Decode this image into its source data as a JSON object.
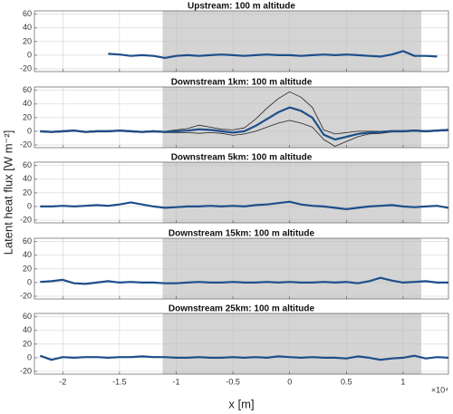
{
  "chart_data": [
    {
      "type": "line",
      "title": "Upstream: 100 m altitude",
      "x": [
        -2.2,
        -2.1,
        -2.0,
        -1.9,
        -1.8,
        -1.7,
        -1.6,
        -1.5,
        -1.4,
        -1.3,
        -1.2,
        -1.1,
        -1.0,
        -0.9,
        -0.8,
        -0.7,
        -0.6,
        -0.5,
        -0.4,
        -0.3,
        -0.2,
        -0.1,
        0,
        0.1,
        0.2,
        0.3,
        0.4,
        0.5,
        0.6,
        0.7,
        0.8,
        0.9,
        1.0,
        1.1,
        1.2,
        1.3,
        1.4
      ],
      "series": [
        {
          "color": "#1d4f8a",
          "values": [
            null,
            null,
            null,
            null,
            null,
            null,
            2,
            1,
            -1,
            0,
            -1,
            -4,
            -1,
            0,
            -1,
            0,
            1,
            0,
            -1,
            0,
            1,
            0,
            0,
            -1,
            0,
            1,
            0,
            1,
            0,
            -1,
            -2,
            1,
            6,
            -1,
            -1,
            -2,
            null
          ]
        }
      ],
      "xlim": [
        -2.25,
        1.4
      ],
      "ylim": [
        -24,
        65
      ],
      "xticks": [
        -2,
        -1.5,
        -1,
        -0.5,
        0,
        0.5,
        1
      ],
      "yticks": [
        -20,
        0,
        20,
        40,
        60
      ],
      "shade": [
        -1.12,
        1.16
      ],
      "grid": true
    },
    {
      "type": "line",
      "title": "Downstream 1km: 100 m altitude",
      "x": [
        -2.2,
        -2.1,
        -2.0,
        -1.9,
        -1.8,
        -1.7,
        -1.6,
        -1.5,
        -1.4,
        -1.3,
        -1.2,
        -1.1,
        -1.0,
        -0.9,
        -0.8,
        -0.7,
        -0.6,
        -0.5,
        -0.4,
        -0.3,
        -0.2,
        -0.1,
        0,
        0.1,
        0.2,
        0.3,
        0.4,
        0.5,
        0.6,
        0.7,
        0.8,
        0.9,
        1.0,
        1.1,
        1.2,
        1.3,
        1.4
      ],
      "series": [
        {
          "color": "#222222",
          "values": [
            1,
            0,
            1,
            2,
            0,
            1,
            1,
            2,
            1,
            0,
            1,
            0,
            2,
            4,
            9,
            6,
            3,
            2,
            5,
            18,
            34,
            48,
            58,
            50,
            35,
            2,
            -4,
            -2,
            0,
            0,
            0,
            1,
            1,
            2,
            1,
            2,
            3
          ]
        },
        {
          "color": "#222222",
          "values": [
            -1,
            -2,
            -1,
            0,
            -2,
            -1,
            -1,
            0,
            -1,
            -2,
            -1,
            -2,
            -2,
            -2,
            -3,
            -2,
            -3,
            -6,
            -4,
            0,
            6,
            12,
            16,
            12,
            6,
            -12,
            -22,
            -15,
            -8,
            -4,
            -3,
            -1,
            -1,
            0,
            -1,
            0,
            1
          ]
        },
        {
          "color": "#1d4f8a",
          "values": [
            0,
            -1,
            0,
            1,
            -1,
            0,
            0,
            1,
            0,
            -1,
            0,
            -1,
            0,
            1,
            3,
            2,
            0,
            -2,
            0,
            8,
            18,
            28,
            35,
            30,
            20,
            -5,
            -12,
            -8,
            -4,
            -2,
            -1,
            0,
            0,
            1,
            0,
            1,
            2
          ]
        }
      ],
      "xlim": [
        -2.25,
        1.4
      ],
      "ylim": [
        -24,
        65
      ],
      "xticks": [
        -2,
        -1.5,
        -1,
        -0.5,
        0,
        0.5,
        1
      ],
      "yticks": [
        -20,
        0,
        20,
        40,
        60
      ],
      "shade": [
        -1.12,
        1.16
      ],
      "grid": true
    },
    {
      "type": "line",
      "title": "Downstream 5km: 100 m altitude",
      "ylabel": "Latent heat flux [W m⁻²]",
      "x": [
        -2.2,
        -2.1,
        -2.0,
        -1.9,
        -1.8,
        -1.7,
        -1.6,
        -1.5,
        -1.4,
        -1.3,
        -1.2,
        -1.1,
        -1.0,
        -0.9,
        -0.8,
        -0.7,
        -0.6,
        -0.5,
        -0.4,
        -0.3,
        -0.2,
        -0.1,
        0,
        0.1,
        0.2,
        0.3,
        0.4,
        0.5,
        0.6,
        0.7,
        0.8,
        0.9,
        1.0,
        1.1,
        1.2,
        1.3,
        1.4
      ],
      "series": [
        {
          "color": "#1d4f8a",
          "values": [
            0,
            0,
            1,
            0,
            1,
            2,
            1,
            3,
            6,
            3,
            0,
            -2,
            -1,
            0,
            0,
            1,
            0,
            1,
            0,
            2,
            3,
            5,
            7,
            3,
            1,
            0,
            -2,
            -4,
            -2,
            0,
            1,
            2,
            0,
            -1,
            0,
            1,
            -2
          ]
        }
      ],
      "xlim": [
        -2.25,
        1.4
      ],
      "ylim": [
        -24,
        65
      ],
      "xticks": [
        -2,
        -1.5,
        -1,
        -0.5,
        0,
        0.5,
        1
      ],
      "yticks": [
        -20,
        0,
        20,
        40,
        60
      ],
      "shade": [
        -1.12,
        1.16
      ],
      "grid": true
    },
    {
      "type": "line",
      "title": "Downstream 15km: 100 m altitude",
      "x": [
        -2.2,
        -2.1,
        -2.0,
        -1.9,
        -1.8,
        -1.7,
        -1.6,
        -1.5,
        -1.4,
        -1.3,
        -1.2,
        -1.1,
        -1.0,
        -0.9,
        -0.8,
        -0.7,
        -0.6,
        -0.5,
        -0.4,
        -0.3,
        -0.2,
        -0.1,
        0,
        0.1,
        0.2,
        0.3,
        0.4,
        0.5,
        0.6,
        0.7,
        0.8,
        0.9,
        1.0,
        1.1,
        1.2,
        1.3,
        1.4
      ],
      "series": [
        {
          "color": "#1d4f8a",
          "values": [
            1,
            2,
            4,
            -1,
            -2,
            0,
            2,
            0,
            1,
            0,
            0,
            -1,
            -1,
            0,
            1,
            0,
            0,
            1,
            0,
            0,
            1,
            0,
            1,
            0,
            0,
            1,
            0,
            1,
            -1,
            2,
            7,
            3,
            0,
            1,
            2,
            0,
            0
          ]
        }
      ],
      "xlim": [
        -2.25,
        1.4
      ],
      "ylim": [
        -24,
        65
      ],
      "xticks": [
        -2,
        -1.5,
        -1,
        -0.5,
        0,
        0.5,
        1
      ],
      "yticks": [
        -20,
        0,
        20,
        40,
        60
      ],
      "shade": [
        -1.12,
        1.16
      ],
      "grid": true
    },
    {
      "type": "line",
      "title": "Downstream 25km: 100 m altitude",
      "xlabel": "x [m]",
      "x_exponent": "×10⁴",
      "show_xticklabels": true,
      "x": [
        -2.2,
        -2.1,
        -2.0,
        -1.9,
        -1.8,
        -1.7,
        -1.6,
        -1.5,
        -1.4,
        -1.3,
        -1.2,
        -1.1,
        -1.0,
        -0.9,
        -0.8,
        -0.7,
        -0.6,
        -0.5,
        -0.4,
        -0.3,
        -0.2,
        -0.1,
        0,
        0.1,
        0.2,
        0.3,
        0.4,
        0.5,
        0.6,
        0.7,
        0.8,
        0.9,
        1.0,
        1.1,
        1.2,
        1.3,
        1.4
      ],
      "series": [
        {
          "color": "#1d4f8a",
          "values": [
            3,
            -3,
            1,
            0,
            1,
            1,
            0,
            1,
            1,
            2,
            1,
            1,
            0,
            0,
            1,
            0,
            0,
            1,
            0,
            1,
            0,
            2,
            1,
            0,
            1,
            0,
            0,
            -1,
            2,
            0,
            -3,
            -1,
            0,
            3,
            -1,
            1,
            0
          ]
        }
      ],
      "xlim": [
        -2.25,
        1.4
      ],
      "ylim": [
        -24,
        65
      ],
      "xticks": [
        -2,
        -1.5,
        -1,
        -0.5,
        0,
        0.5,
        1
      ],
      "yticks": [
        -20,
        0,
        20,
        40,
        60
      ],
      "shade": [
        -1.12,
        1.16
      ],
      "grid": true
    }
  ]
}
